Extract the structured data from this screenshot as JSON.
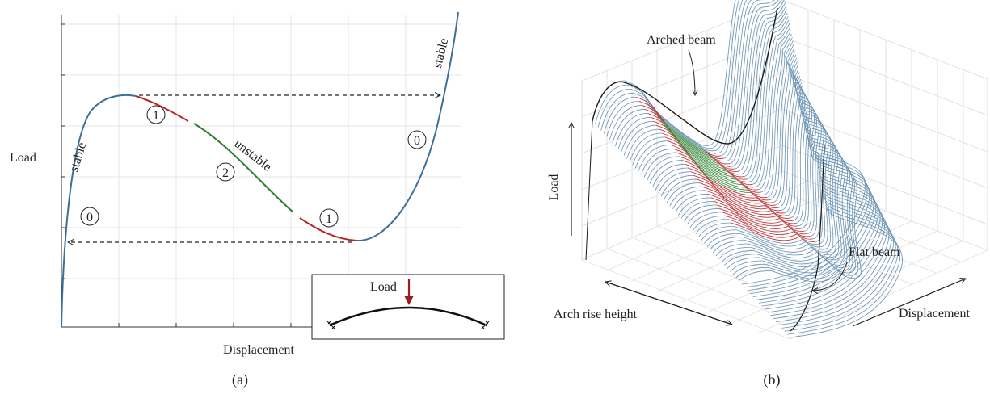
{
  "panel_a": {
    "caption": "(a)",
    "ylabel": "Load",
    "xlabel": "Displacement",
    "labels": {
      "stable_left": "stable",
      "stable_right": "stable",
      "unstable": "unstable"
    },
    "markers": {
      "zero_left": "0",
      "one_left": "1",
      "two": "2",
      "one_right": "1",
      "zero_right": "0"
    },
    "inset": {
      "load_label": "Load"
    },
    "colors": {
      "stable": "#3d6f99",
      "unstable_1": "#b5262b",
      "unstable_2": "#2e7d32",
      "arrow": "#9b1b22"
    }
  },
  "panel_b": {
    "caption": "(b)",
    "axis_load": "Load",
    "axis_arch": "Arch rise height",
    "axis_disp": "Displacement",
    "annot_arched": "Arched beam",
    "annot_flat": "Flat beam",
    "colors": {
      "stable": "#4f7fa6",
      "red": "#c0393c",
      "green": "#3e8e41"
    }
  }
}
